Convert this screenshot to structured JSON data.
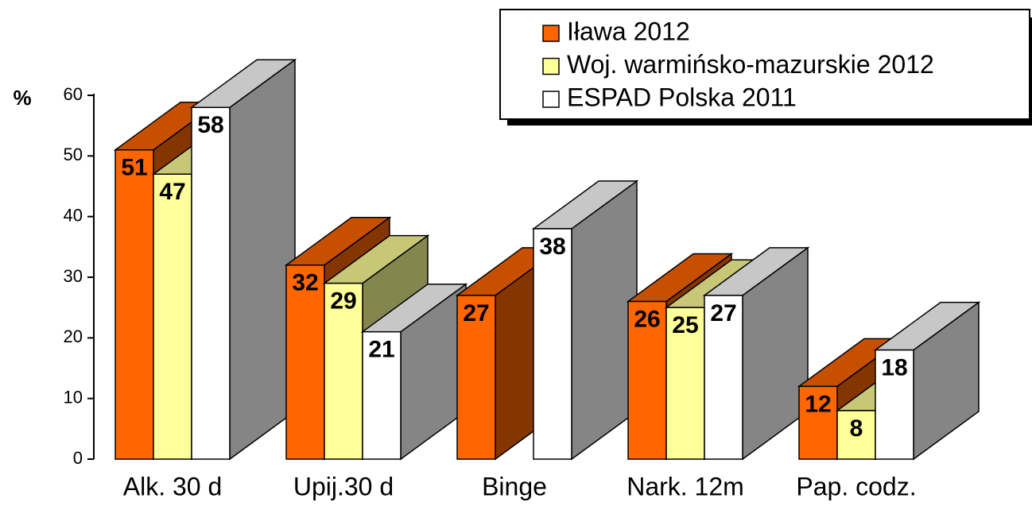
{
  "chart_data": {
    "type": "bar3d",
    "y_label": "%",
    "categories": [
      "Alk. 30 d",
      "Upij.30 d",
      "Binge",
      "Nark. 12m",
      "Pap. codz."
    ],
    "series": [
      {
        "name": "Iława 2012",
        "color": "#ff6600",
        "values": [
          51,
          32,
          27,
          26,
          12
        ]
      },
      {
        "name": "Woj. warmińsko-mazurskie 2012",
        "color": "#ffff99",
        "values": [
          47,
          29,
          null,
          25,
          8
        ]
      },
      {
        "name": "ESPAD Polska 2011",
        "color": "#ffffff",
        "values": [
          58,
          21,
          38,
          27,
          18
        ]
      }
    ],
    "ylim": [
      0,
      60
    ],
    "yticks": [
      0,
      10,
      20,
      30,
      40,
      50,
      60
    ],
    "legend": "top-right"
  }
}
